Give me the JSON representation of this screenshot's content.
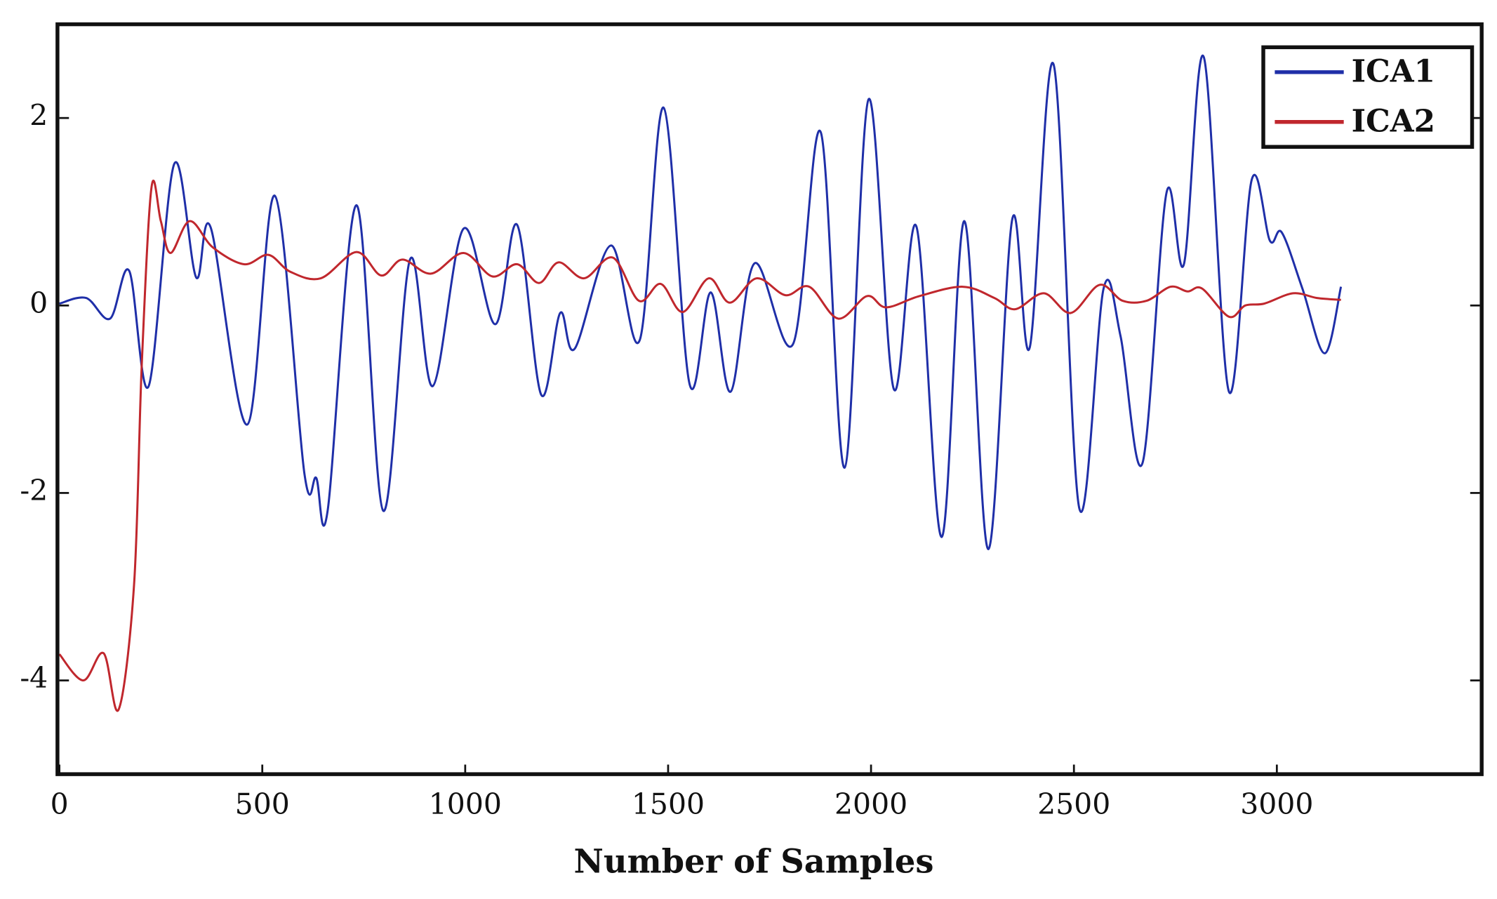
{
  "chart_data": {
    "type": "line",
    "xlabel": "Number of Samples",
    "xlim": [
      0,
      3500
    ],
    "xticks": [
      0,
      500,
      1000,
      1500,
      2000,
      2500,
      3000
    ],
    "ylim": [
      -5,
      3
    ],
    "yticks": [
      -4,
      -2,
      0,
      2
    ],
    "grid": false,
    "legend": "upper right",
    "series": [
      {
        "name": "ICA1",
        "color": "#1f2fa8",
        "x": [
          0,
          66,
          125,
          172,
          220,
          283,
          337,
          373,
          463,
          531,
          604,
          633,
          661,
          732,
          798,
          864,
          920,
          996,
          1074,
          1128,
          1187,
          1234,
          1270,
          1359,
          1430,
          1489,
          1553,
          1605,
          1654,
          1713,
          1808,
          1876,
          1935,
          1994,
          2056,
          2112,
          2174,
          2230,
          2289,
          2348,
          2391,
          2450,
          2513,
          2573,
          2615,
          2669,
          2728,
          2771,
          2820,
          2882,
          2938,
          2983,
          3012,
          3063,
          3118,
          3158
        ],
        "values": [
          0.02,
          0.08,
          -0.14,
          0.37,
          -0.86,
          1.51,
          0.3,
          0.83,
          -1.27,
          1.17,
          -1.8,
          -1.84,
          -2.19,
          1.07,
          -2.19,
          0.49,
          -0.86,
          0.82,
          -0.2,
          0.86,
          -0.95,
          -0.08,
          -0.46,
          0.64,
          -0.37,
          2.11,
          -0.84,
          0.14,
          -0.92,
          0.45,
          -0.41,
          1.85,
          -1.73,
          2.2,
          -0.89,
          0.84,
          -2.47,
          0.9,
          -2.6,
          0.92,
          -0.45,
          2.57,
          -2.16,
          0.18,
          -0.33,
          -1.68,
          1.2,
          0.44,
          2.65,
          -0.92,
          1.34,
          0.69,
          0.78,
          0.18,
          -0.51,
          0.2
        ]
      },
      {
        "name": "ICA2",
        "color": "#c0272d",
        "x": [
          0,
          59,
          109,
          146,
          184,
          203,
          227,
          250,
          274,
          321,
          378,
          455,
          515,
          569,
          644,
          732,
          793,
          845,
          916,
          996,
          1067,
          1128,
          1182,
          1230,
          1293,
          1364,
          1428,
          1482,
          1536,
          1600,
          1652,
          1718,
          1789,
          1848,
          1919,
          1990,
          2037,
          2119,
          2226,
          2304,
          2355,
          2426,
          2492,
          2563,
          2620,
          2679,
          2738,
          2780,
          2816,
          2882,
          2922,
          2969,
          3040,
          3099,
          3158
        ],
        "values": [
          -3.72,
          -4.0,
          -3.71,
          -4.31,
          -2.98,
          -0.63,
          1.26,
          0.9,
          0.56,
          0.9,
          0.62,
          0.44,
          0.54,
          0.36,
          0.29,
          0.57,
          0.32,
          0.49,
          0.34,
          0.56,
          0.31,
          0.44,
          0.24,
          0.46,
          0.29,
          0.51,
          0.05,
          0.23,
          -0.07,
          0.29,
          0.03,
          0.29,
          0.11,
          0.2,
          -0.14,
          0.1,
          -0.02,
          0.1,
          0.2,
          0.08,
          -0.04,
          0.13,
          -0.08,
          0.22,
          0.05,
          0.05,
          0.2,
          0.15,
          0.18,
          -0.12,
          0,
          0.02,
          0.13,
          0.08,
          0.06
        ]
      }
    ]
  }
}
